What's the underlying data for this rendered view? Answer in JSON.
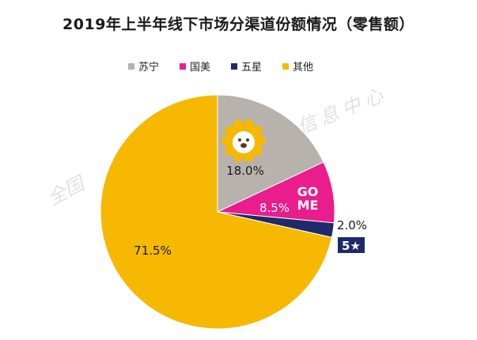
{
  "chart_data": {
    "type": "pie",
    "title": "2019年上半年线下市场分渠道份额情况（零售额）",
    "categories": [
      "苏宁",
      "国美",
      "五星",
      "其他"
    ],
    "values": [
      18.0,
      8.5,
      2.0,
      71.5
    ],
    "value_labels": [
      "18.0%",
      "8.5%",
      "2.0%",
      "71.5%"
    ],
    "colors": [
      "#b8b2ad",
      "#e91e8c",
      "#1f2a6b",
      "#f6b800"
    ],
    "legend_position": "top"
  },
  "brands": {
    "gome_logo_text": "GOME",
    "wuxing_logo_text": "5★"
  },
  "watermark": {
    "left_text": "全国",
    "right_text": "信息中心"
  }
}
